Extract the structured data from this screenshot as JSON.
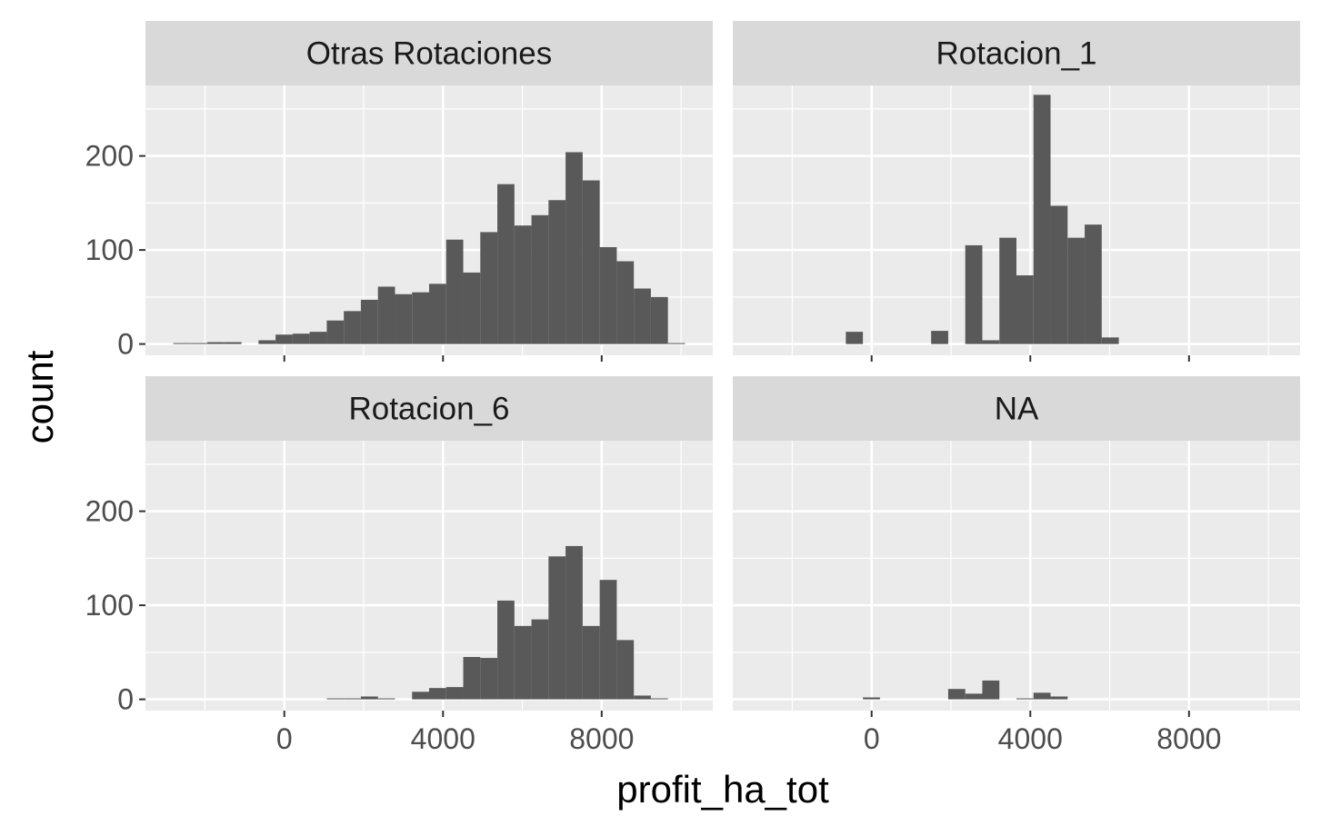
{
  "chart_data": {
    "type": "bar",
    "subtype": "histogram-facets",
    "xlabel": "profit_ha_tot",
    "ylabel": "count",
    "xlim": [
      -3500,
      10800
    ],
    "ylim": [
      -12,
      275
    ],
    "x_ticks": [
      0,
      4000,
      8000
    ],
    "x_tick_labels": [
      "0",
      "4000",
      "8000"
    ],
    "y_ticks": [
      0,
      100,
      200
    ],
    "y_tick_labels": [
      "0",
      "100",
      "200"
    ],
    "bin_width": 430,
    "grid": true,
    "bar_color": "#595959",
    "panel_bg": "#ebebeb",
    "strip_bg": "#d9d9d9",
    "grid_color": "#ffffff",
    "facets": [
      {
        "name": "Otras Rotaciones",
        "bins": [
          {
            "x0": -2800,
            "x1": -2370,
            "count": 1
          },
          {
            "x0": -2370,
            "x1": -1940,
            "count": 1
          },
          {
            "x0": -1940,
            "x1": -1510,
            "count": 2
          },
          {
            "x0": -1510,
            "x1": -1080,
            "count": 2
          },
          {
            "x0": -1080,
            "x1": -650,
            "count": 0
          },
          {
            "x0": -650,
            "x1": -220,
            "count": 4
          },
          {
            "x0": -220,
            "x1": 210,
            "count": 10
          },
          {
            "x0": 210,
            "x1": 640,
            "count": 11
          },
          {
            "x0": 640,
            "x1": 1070,
            "count": 13
          },
          {
            "x0": 1070,
            "x1": 1500,
            "count": 25
          },
          {
            "x0": 1500,
            "x1": 1930,
            "count": 35
          },
          {
            "x0": 1930,
            "x1": 2360,
            "count": 47
          },
          {
            "x0": 2360,
            "x1": 2790,
            "count": 61
          },
          {
            "x0": 2790,
            "x1": 3220,
            "count": 53
          },
          {
            "x0": 3220,
            "x1": 3650,
            "count": 55
          },
          {
            "x0": 3650,
            "x1": 4080,
            "count": 64
          },
          {
            "x0": 4080,
            "x1": 4510,
            "count": 111
          },
          {
            "x0": 4510,
            "x1": 4940,
            "count": 76
          },
          {
            "x0": 4940,
            "x1": 5370,
            "count": 119
          },
          {
            "x0": 5370,
            "x1": 5800,
            "count": 170
          },
          {
            "x0": 5800,
            "x1": 6230,
            "count": 126
          },
          {
            "x0": 6230,
            "x1": 6660,
            "count": 137
          },
          {
            "x0": 6660,
            "x1": 7090,
            "count": 153
          },
          {
            "x0": 7090,
            "x1": 7520,
            "count": 204
          },
          {
            "x0": 7520,
            "x1": 7950,
            "count": 174
          },
          {
            "x0": 7950,
            "x1": 8380,
            "count": 103
          },
          {
            "x0": 8380,
            "x1": 8810,
            "count": 88
          },
          {
            "x0": 8810,
            "x1": 9240,
            "count": 59
          },
          {
            "x0": 9240,
            "x1": 9670,
            "count": 50
          },
          {
            "x0": 9670,
            "x1": 10100,
            "count": 1
          }
        ]
      },
      {
        "name": "Rotacion_1",
        "bins": [
          {
            "x0": -650,
            "x1": -220,
            "count": 13
          },
          {
            "x0": 1500,
            "x1": 1930,
            "count": 14
          },
          {
            "x0": 2360,
            "x1": 2790,
            "count": 105
          },
          {
            "x0": 2790,
            "x1": 3220,
            "count": 4
          },
          {
            "x0": 3220,
            "x1": 3650,
            "count": 113
          },
          {
            "x0": 3650,
            "x1": 4080,
            "count": 73
          },
          {
            "x0": 4080,
            "x1": 4510,
            "count": 265
          },
          {
            "x0": 4510,
            "x1": 4940,
            "count": 147
          },
          {
            "x0": 4940,
            "x1": 5370,
            "count": 113
          },
          {
            "x0": 5370,
            "x1": 5800,
            "count": 127
          },
          {
            "x0": 5800,
            "x1": 6230,
            "count": 7
          }
        ]
      },
      {
        "name": "Rotacion_6",
        "bins": [
          {
            "x0": 1070,
            "x1": 1500,
            "count": 1
          },
          {
            "x0": 1500,
            "x1": 1930,
            "count": 1
          },
          {
            "x0": 1930,
            "x1": 2360,
            "count": 3
          },
          {
            "x0": 2360,
            "x1": 2790,
            "count": 1
          },
          {
            "x0": 3220,
            "x1": 3650,
            "count": 8
          },
          {
            "x0": 3650,
            "x1": 4080,
            "count": 12
          },
          {
            "x0": 4080,
            "x1": 4510,
            "count": 13
          },
          {
            "x0": 4510,
            "x1": 4940,
            "count": 45
          },
          {
            "x0": 4940,
            "x1": 5370,
            "count": 44
          },
          {
            "x0": 5370,
            "x1": 5800,
            "count": 105
          },
          {
            "x0": 5800,
            "x1": 6230,
            "count": 78
          },
          {
            "x0": 6230,
            "x1": 6660,
            "count": 85
          },
          {
            "x0": 6660,
            "x1": 7090,
            "count": 152
          },
          {
            "x0": 7090,
            "x1": 7520,
            "count": 163
          },
          {
            "x0": 7520,
            "x1": 7950,
            "count": 78
          },
          {
            "x0": 7950,
            "x1": 8380,
            "count": 127
          },
          {
            "x0": 8380,
            "x1": 8810,
            "count": 63
          },
          {
            "x0": 8810,
            "x1": 9240,
            "count": 4
          },
          {
            "x0": 9240,
            "x1": 9670,
            "count": 1
          }
        ]
      },
      {
        "name": "NA",
        "bins": [
          {
            "x0": -220,
            "x1": 210,
            "count": 2
          },
          {
            "x0": 1930,
            "x1": 2360,
            "count": 11
          },
          {
            "x0": 2360,
            "x1": 2790,
            "count": 6
          },
          {
            "x0": 2790,
            "x1": 3220,
            "count": 20
          },
          {
            "x0": 3650,
            "x1": 4080,
            "count": 1
          },
          {
            "x0": 4080,
            "x1": 4510,
            "count": 7
          },
          {
            "x0": 4510,
            "x1": 4940,
            "count": 3
          }
        ]
      }
    ]
  }
}
